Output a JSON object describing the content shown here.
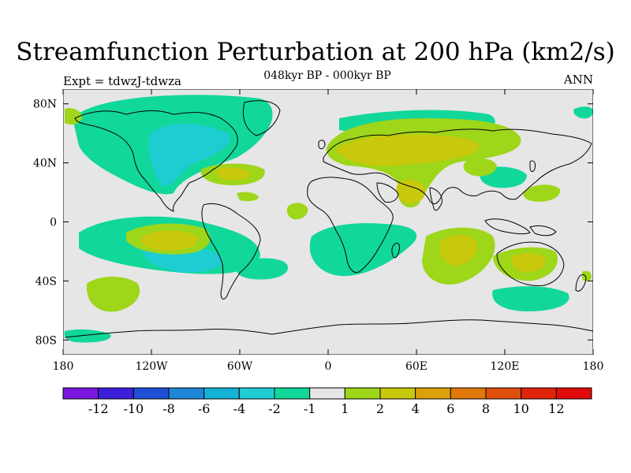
{
  "title": "Streamfunction Perturbation at 200 hPa (km2/s)",
  "subtitle": "048kyr BP - 000kyr BP",
  "expt_label": "Expt = tdwzJ-tdwza",
  "period_label": "ANN",
  "chart_data": {
    "type": "filled-contour-map",
    "variable": "Streamfunction Perturbation",
    "level": "200 hPa",
    "units": "km2/s",
    "lon_range": [
      -180,
      180
    ],
    "lat_range": [
      -90,
      90
    ],
    "x_ticks": [
      {
        "lon": -180,
        "label": "180"
      },
      {
        "lon": -120,
        "label": "120W"
      },
      {
        "lon": -60,
        "label": "60W"
      },
      {
        "lon": 0,
        "label": "0"
      },
      {
        "lon": 60,
        "label": "60E"
      },
      {
        "lon": 120,
        "label": "120E"
      },
      {
        "lon": 180,
        "label": "180"
      }
    ],
    "y_ticks": [
      {
        "lat": 80,
        "label": "80N"
      },
      {
        "lat": 40,
        "label": "40N"
      },
      {
        "lat": 0,
        "label": "0"
      },
      {
        "lat": -40,
        "label": "40S"
      },
      {
        "lat": -80,
        "label": "80S"
      }
    ],
    "colorbar": {
      "labels": [
        "-12",
        "-10",
        "-8",
        "-6",
        "-4",
        "-2",
        "-1",
        "1",
        "2",
        "4",
        "6",
        "8",
        "10",
        "12"
      ],
      "colors": [
        "#7a16de",
        "#3c1fdb",
        "#1e4fd6",
        "#1e86d6",
        "#14b2d6",
        "#1ecdd2",
        "#12d79a",
        "#e6e6e6",
        "#9ed61a",
        "#c8c80c",
        "#dca10a",
        "#e0780a",
        "#e0500a",
        "#e0240a",
        "#e00a0a"
      ]
    },
    "regions": [
      {
        "name": "north-america-negative",
        "lon": -100,
        "lat": 48,
        "value": -3
      },
      {
        "name": "central-pacific-south-negative",
        "lon": -120,
        "lat": -25,
        "value": -3
      },
      {
        "name": "central-pacific-south-positive",
        "lon": -130,
        "lat": -15,
        "value": 3
      },
      {
        "name": "eurasia-positive",
        "lon": 40,
        "lat": 55,
        "value": 3
      },
      {
        "name": "south-indian-positive",
        "lon": 80,
        "lat": -18,
        "value": 3
      },
      {
        "name": "australia-positive",
        "lon": 135,
        "lat": -28,
        "value": 3
      },
      {
        "name": "south-atlantic-negative",
        "lon": 5,
        "lat": -15,
        "value": -1.5
      },
      {
        "name": "southern-ocean-negative",
        "lon": 150,
        "lat": -50,
        "value": -1.5
      },
      {
        "name": "south-pacific-positive",
        "lon": -148,
        "lat": -48,
        "value": 1.5
      },
      {
        "name": "north-atlantic-positive",
        "lon": -48,
        "lat": 33,
        "value": 2
      }
    ]
  }
}
